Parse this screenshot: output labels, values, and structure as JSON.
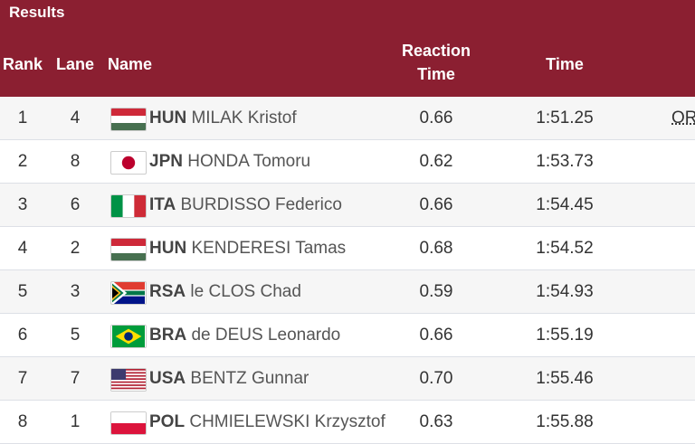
{
  "header": {
    "title": "Results",
    "columns": {
      "rank": "Rank",
      "lane": "Lane",
      "name": "Name",
      "reaction_1": "Reaction",
      "reaction_2": "Time",
      "time": "Time"
    }
  },
  "colors": {
    "header_bg": "#8b1f31"
  },
  "rows": [
    {
      "rank": "1",
      "lane": "4",
      "noc": "HUN",
      "name": "MILAK Kristof",
      "rt": "0.66",
      "time": "1:51.25",
      "record": "OR",
      "flag": "hungary-flag"
    },
    {
      "rank": "2",
      "lane": "8",
      "noc": "JPN",
      "name": "HONDA Tomoru",
      "rt": "0.62",
      "time": "1:53.73",
      "record": "",
      "flag": "japan-flag"
    },
    {
      "rank": "3",
      "lane": "6",
      "noc": "ITA",
      "name": "BURDISSO Federico",
      "rt": "0.66",
      "time": "1:54.45",
      "record": "",
      "flag": "italy-flag"
    },
    {
      "rank": "4",
      "lane": "2",
      "noc": "HUN",
      "name": "KENDERESI Tamas",
      "rt": "0.68",
      "time": "1:54.52",
      "record": "",
      "flag": "hungary-flag"
    },
    {
      "rank": "5",
      "lane": "3",
      "noc": "RSA",
      "name": "le CLOS Chad",
      "rt": "0.59",
      "time": "1:54.93",
      "record": "",
      "flag": "south-africa-flag"
    },
    {
      "rank": "6",
      "lane": "5",
      "noc": "BRA",
      "name": "de DEUS Leonardo",
      "rt": "0.66",
      "time": "1:55.19",
      "record": "",
      "flag": "brazil-flag"
    },
    {
      "rank": "7",
      "lane": "7",
      "noc": "USA",
      "name": "BENTZ Gunnar",
      "rt": "0.70",
      "time": "1:55.46",
      "record": "",
      "flag": "usa-flag"
    },
    {
      "rank": "8",
      "lane": "1",
      "noc": "POL",
      "name": "CHMIELEWSKI Krzysztof",
      "rt": "0.63",
      "time": "1:55.88",
      "record": "",
      "flag": "poland-flag"
    }
  ]
}
